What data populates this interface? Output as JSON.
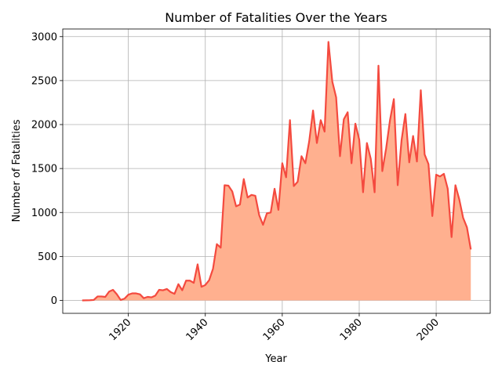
{
  "chart_data": {
    "type": "area",
    "title": "Number of Fatalities Over the Years",
    "xlabel": "Year",
    "ylabel": "Number of Fatalities",
    "x": [
      1908,
      1909,
      1910,
      1911,
      1912,
      1913,
      1914,
      1915,
      1916,
      1917,
      1918,
      1919,
      1920,
      1921,
      1922,
      1923,
      1924,
      1925,
      1926,
      1927,
      1928,
      1929,
      1930,
      1931,
      1932,
      1933,
      1934,
      1935,
      1936,
      1937,
      1938,
      1939,
      1940,
      1941,
      1942,
      1943,
      1944,
      1945,
      1946,
      1947,
      1948,
      1949,
      1950,
      1951,
      1952,
      1953,
      1954,
      1955,
      1956,
      1957,
      1958,
      1959,
      1960,
      1961,
      1962,
      1963,
      1964,
      1965,
      1966,
      1967,
      1968,
      1969,
      1970,
      1971,
      1972,
      1973,
      1974,
      1975,
      1976,
      1977,
      1978,
      1979,
      1980,
      1981,
      1982,
      1983,
      1984,
      1985,
      1986,
      1987,
      1988,
      1989,
      1990,
      1991,
      1992,
      1993,
      1994,
      1995,
      1996,
      1997,
      1998,
      1999,
      2000,
      2001,
      2002,
      2003,
      2004,
      2005,
      2006,
      2007,
      2008,
      2009
    ],
    "values": [
      0,
      1,
      2,
      5,
      45,
      45,
      40,
      100,
      120,
      70,
      5,
      20,
      65,
      80,
      80,
      70,
      25,
      40,
      35,
      55,
      120,
      115,
      130,
      95,
      75,
      185,
      115,
      225,
      225,
      200,
      410,
      155,
      175,
      230,
      360,
      640,
      600,
      1310,
      1305,
      1240,
      1070,
      1090,
      1380,
      1170,
      1200,
      1190,
      970,
      860,
      990,
      1000,
      1270,
      1030,
      1560,
      1400,
      2050,
      1300,
      1350,
      1640,
      1560,
      1810,
      2160,
      1790,
      2050,
      1920,
      2940,
      2490,
      2310,
      1640,
      2060,
      2140,
      1560,
      2010,
      1830,
      1230,
      1790,
      1610,
      1230,
      2670,
      1470,
      1730,
      2050,
      2290,
      1310,
      1820,
      2120,
      1570,
      1870,
      1580,
      2390,
      1660,
      1550,
      960,
      1430,
      1410,
      1440,
      1270,
      720,
      1310,
      1150,
      940,
      830,
      580
    ],
    "line_color": "#f44a3f",
    "fill_color": "#ffb08f",
    "xlim": [
      1902.95,
      2014.05
    ],
    "xticks": [
      1920,
      1940,
      1960,
      1980,
      2000
    ],
    "ylim": [
      -147,
      3087
    ],
    "yticks": [
      0,
      500,
      1000,
      1500,
      2000,
      2500,
      3000
    ],
    "grid": true
  }
}
